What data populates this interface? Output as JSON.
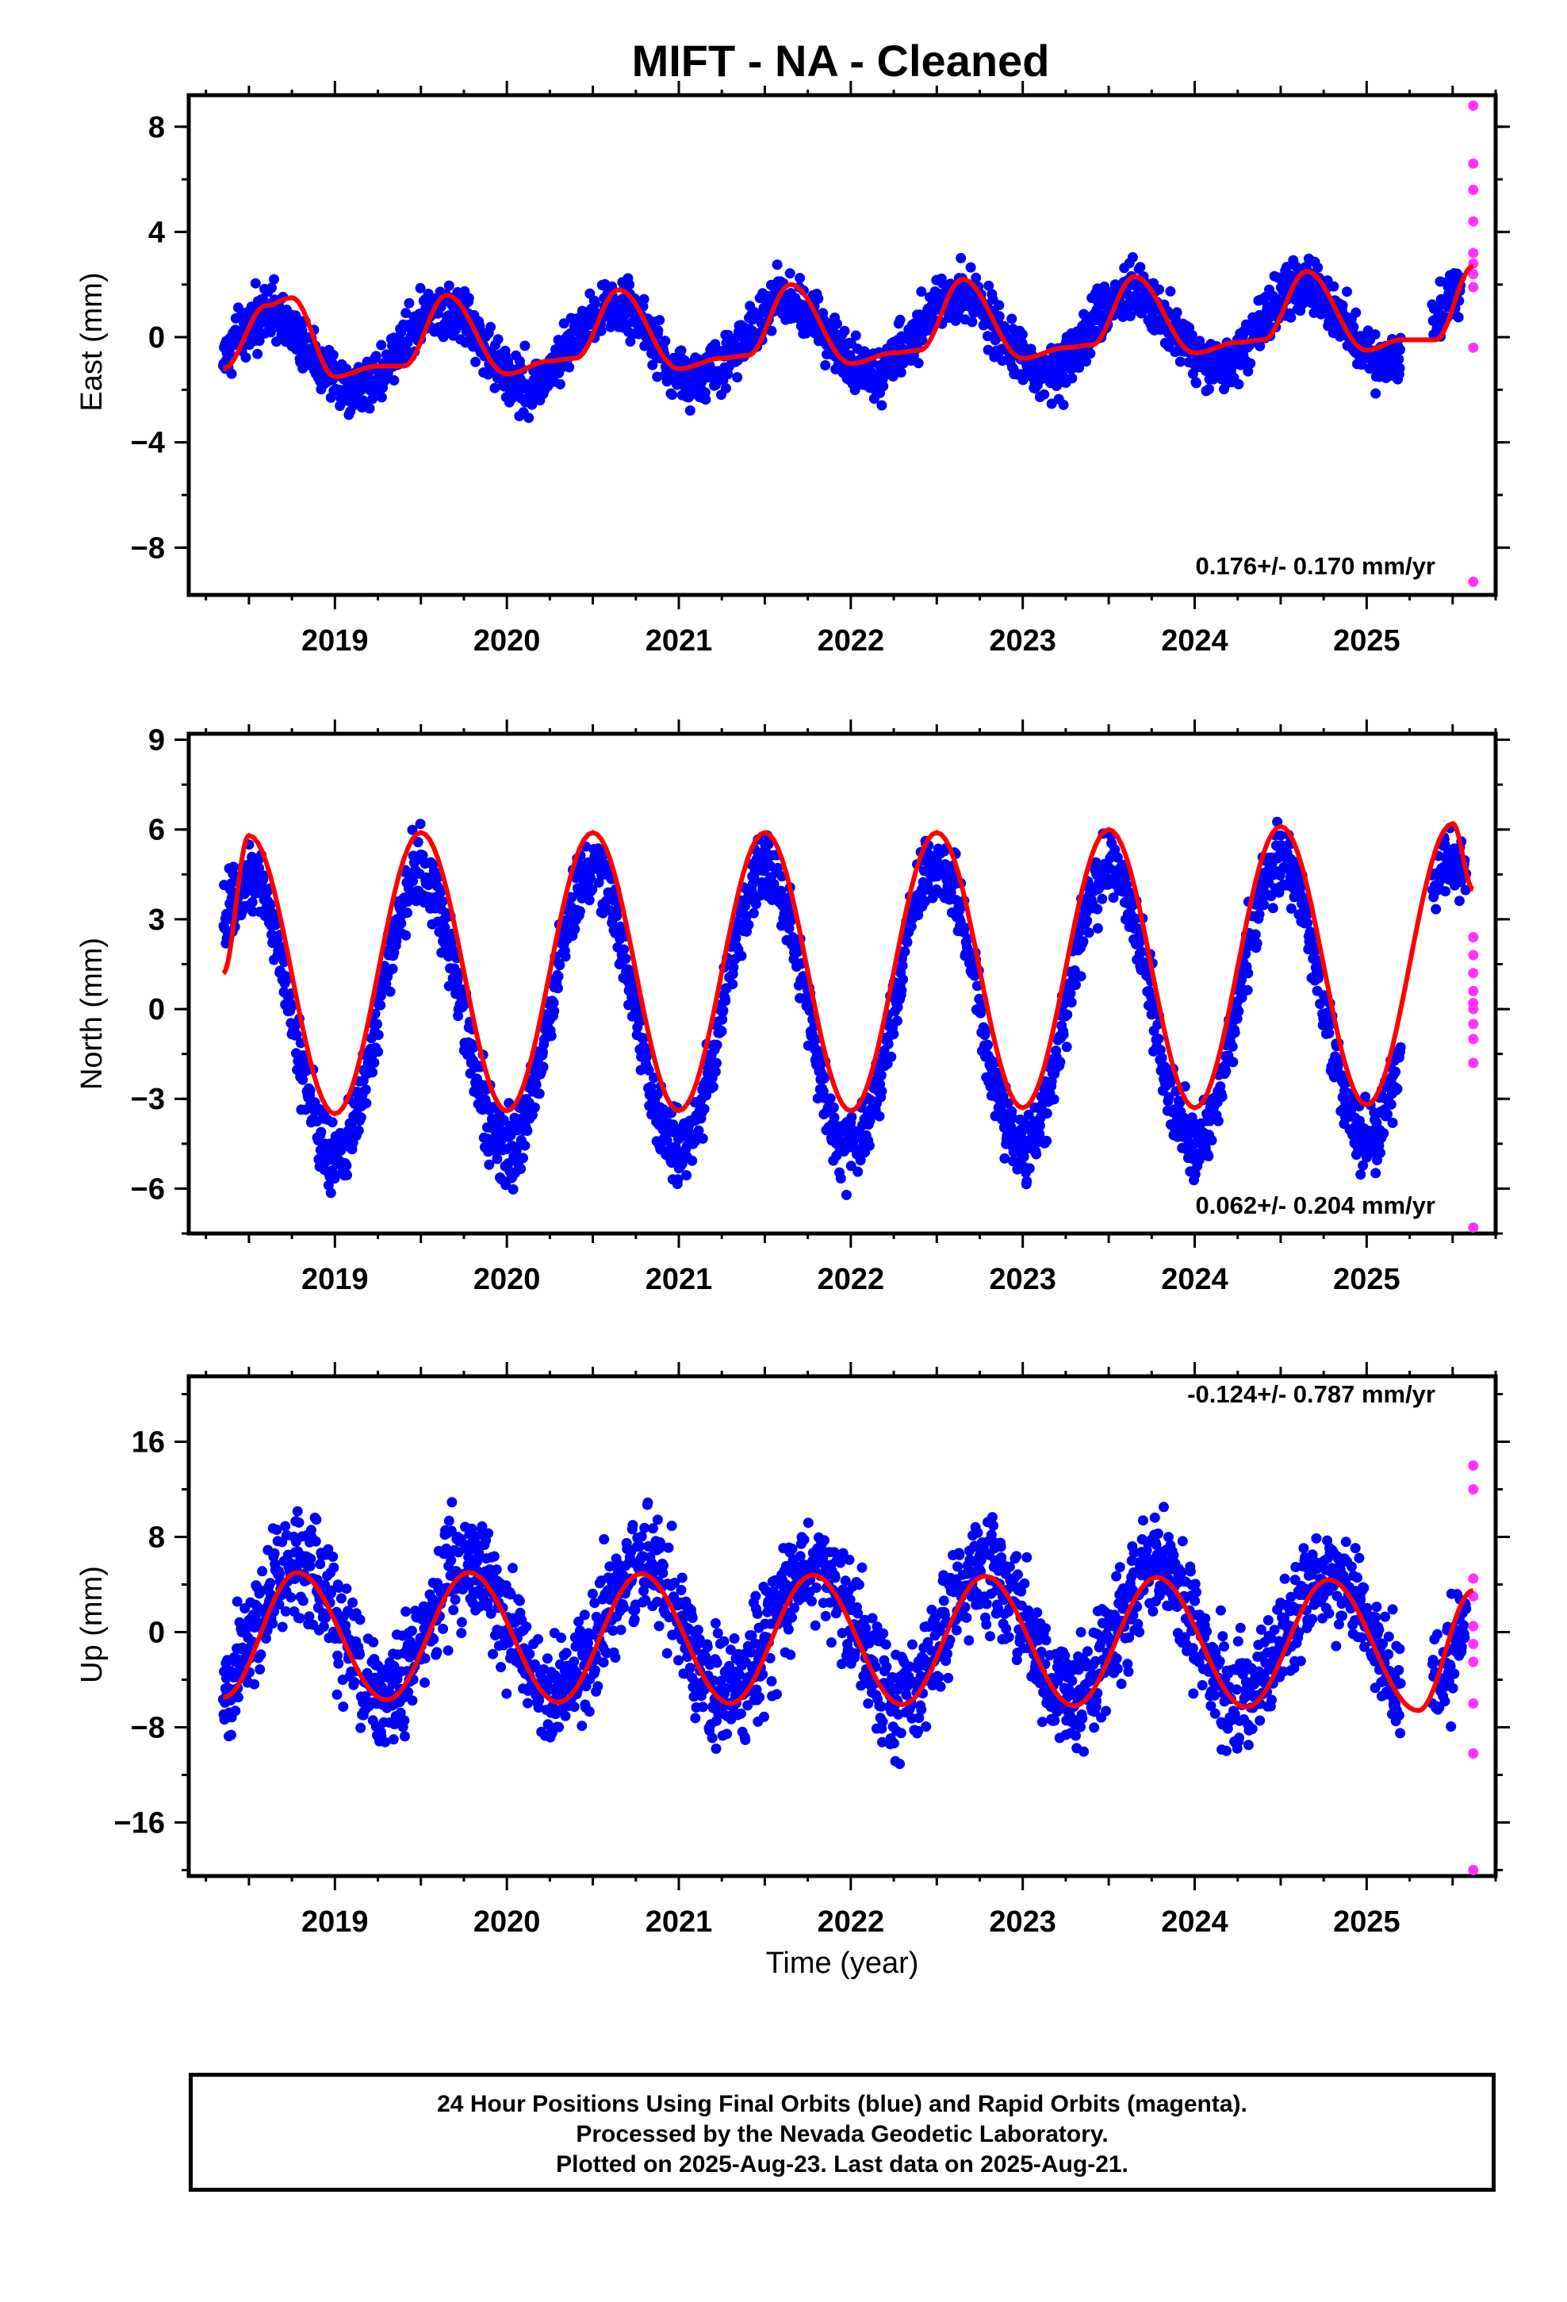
{
  "title": "MIFT  - NA - Cleaned",
  "x_label": "Time (year)",
  "footer": {
    "line1": "24 Hour Positions Using Final Orbits (blue) and Rapid Orbits (magenta).",
    "line2": "Processed by the Nevada Geodetic Laboratory.",
    "line3": "Plotted on 2025-Aug-23. Last data on 2025-Aug-21."
  },
  "colors": {
    "final_orbits": "#0000ff",
    "rapid_orbits": "#ff33ff",
    "model_fit": "#ff0000"
  },
  "chart_data": [
    {
      "type": "scatter",
      "ylabel": "East (mm)",
      "rate_text": "0.176+/- 0.170 mm/yr",
      "xlim": [
        2018.15,
        2025.75
      ],
      "ylim": [
        -9.8,
        9.2
      ],
      "x_ticks": [
        2019,
        2020,
        2021,
        2022,
        2023,
        2024,
        2025
      ],
      "y_ticks": [
        -8,
        -4,
        0,
        4,
        8
      ],
      "data_range": [
        2018.35,
        2025.55
      ],
      "seasonal": {
        "amplitude": 1.5,
        "phase_peak": 0.62,
        "trend_mm_per_yr": 0.176,
        "noise": 0.9
      },
      "model_fit": [
        [
          2018.35,
          -1.2
        ],
        [
          2018.6,
          1.2
        ],
        [
          2018.75,
          1.5
        ],
        [
          2019.0,
          -1.5
        ],
        [
          2019.25,
          -1.1
        ],
        [
          2019.4,
          -1.1
        ],
        [
          2019.65,
          1.6
        ],
        [
          2020.0,
          -1.4
        ],
        [
          2020.25,
          -0.9
        ],
        [
          2020.4,
          -0.8
        ],
        [
          2020.65,
          1.8
        ],
        [
          2021.0,
          -1.2
        ],
        [
          2021.25,
          -0.8
        ],
        [
          2021.4,
          -0.7
        ],
        [
          2021.65,
          2.0
        ],
        [
          2022.0,
          -1.0
        ],
        [
          2022.25,
          -0.6
        ],
        [
          2022.4,
          -0.5
        ],
        [
          2022.65,
          2.2
        ],
        [
          2023.0,
          -0.8
        ],
        [
          2023.25,
          -0.4
        ],
        [
          2023.4,
          -0.3
        ],
        [
          2023.65,
          2.3
        ],
        [
          2024.0,
          -0.6
        ],
        [
          2024.25,
          -0.2
        ],
        [
          2024.4,
          -0.1
        ],
        [
          2024.65,
          2.5
        ],
        [
          2025.0,
          -0.5
        ],
        [
          2025.2,
          -0.1
        ],
        [
          2025.4,
          -0.1
        ],
        [
          2025.62,
          2.7
        ]
      ],
      "rapid_orbits": [
        [
          2025.62,
          8.8
        ],
        [
          2025.62,
          6.6
        ],
        [
          2025.62,
          5.6
        ],
        [
          2025.62,
          4.4
        ],
        [
          2025.62,
          3.2
        ],
        [
          2025.62,
          2.8
        ],
        [
          2025.62,
          2.4
        ],
        [
          2025.62,
          1.9
        ],
        [
          2025.62,
          -0.4
        ],
        [
          2025.62,
          -9.3
        ]
      ]
    },
    {
      "type": "scatter",
      "ylabel": "North (mm)",
      "rate_text": "0.062+/- 0.204 mm/yr",
      "xlim": [
        2018.15,
        2025.75
      ],
      "ylim": [
        -7.5,
        9.2
      ],
      "x_ticks": [
        2019,
        2020,
        2021,
        2022,
        2023,
        2024,
        2025
      ],
      "y_ticks": [
        -6,
        -3,
        0,
        3,
        6,
        9
      ],
      "data_range": [
        2018.35,
        2025.58
      ],
      "seasonal": {
        "amplitude": 4.7,
        "phase_peak": 0.5,
        "trend_mm_per_yr": 0.062,
        "noise": 1.0
      },
      "model_fit": [
        [
          2018.35,
          1.2
        ],
        [
          2018.5,
          5.8
        ],
        [
          2019.0,
          -3.5
        ],
        [
          2019.5,
          5.9
        ],
        [
          2020.0,
          -3.4
        ],
        [
          2020.5,
          5.9
        ],
        [
          2021.0,
          -3.4
        ],
        [
          2021.5,
          5.9
        ],
        [
          2022.0,
          -3.4
        ],
        [
          2022.5,
          5.9
        ],
        [
          2023.0,
          -3.3
        ],
        [
          2023.5,
          6.0
        ],
        [
          2024.0,
          -3.3
        ],
        [
          2024.5,
          6.1
        ],
        [
          2025.0,
          -3.2
        ],
        [
          2025.5,
          6.2
        ],
        [
          2025.62,
          4.0
        ]
      ],
      "rapid_orbits": [
        [
          2025.62,
          2.4
        ],
        [
          2025.62,
          1.8
        ],
        [
          2025.62,
          1.2
        ],
        [
          2025.62,
          0.6
        ],
        [
          2025.62,
          0.2
        ],
        [
          2025.62,
          0.0
        ],
        [
          2025.62,
          -0.5
        ],
        [
          2025.62,
          -1.0
        ],
        [
          2025.62,
          -1.8
        ],
        [
          2025.62,
          -7.3
        ]
      ]
    },
    {
      "type": "scatter",
      "ylabel": "Up (mm)",
      "rate_text": "-0.124+/- 0.787 mm/yr",
      "xlim": [
        2018.15,
        2025.75
      ],
      "ylim": [
        -20.5,
        21.5
      ],
      "x_ticks": [
        2019,
        2020,
        2021,
        2022,
        2023,
        2024,
        2025
      ],
      "y_ticks": [
        -16,
        -8,
        0,
        8,
        16
      ],
      "data_range": [
        2018.35,
        2025.58
      ],
      "seasonal": {
        "amplitude": 5.4,
        "phase_peak": 0.78,
        "trend_mm_per_yr": -0.124,
        "noise": 4.0
      },
      "model_fit": [
        [
          2018.35,
          -5.5
        ],
        [
          2018.78,
          5.0
        ],
        [
          2019.3,
          -5.7
        ],
        [
          2019.78,
          5.0
        ],
        [
          2020.3,
          -5.9
        ],
        [
          2020.78,
          4.9
        ],
        [
          2021.3,
          -6.0
        ],
        [
          2021.78,
          4.8
        ],
        [
          2022.3,
          -6.1
        ],
        [
          2022.78,
          4.7
        ],
        [
          2023.3,
          -6.2
        ],
        [
          2023.78,
          4.6
        ],
        [
          2024.3,
          -6.3
        ],
        [
          2024.78,
          4.4
        ],
        [
          2025.3,
          -6.6
        ],
        [
          2025.62,
          3.5
        ]
      ],
      "rapid_orbits": [
        [
          2025.62,
          14.0
        ],
        [
          2025.62,
          12.0
        ],
        [
          2025.62,
          4.5
        ],
        [
          2025.62,
          3.0
        ],
        [
          2025.62,
          0.5
        ],
        [
          2025.62,
          -1.0
        ],
        [
          2025.62,
          -2.5
        ],
        [
          2025.62,
          -6.0
        ],
        [
          2025.62,
          -10.2
        ],
        [
          2025.62,
          -20.0
        ]
      ]
    }
  ]
}
